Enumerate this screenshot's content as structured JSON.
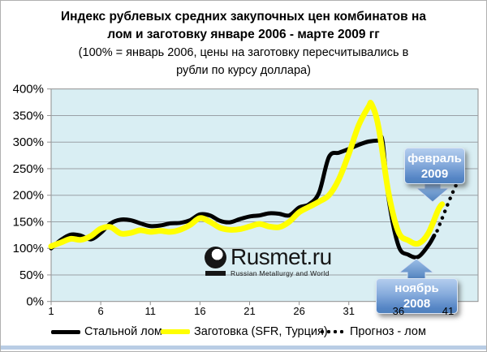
{
  "title": {
    "line1": "Индекс рублевых средних закупочных цен  комбинатов на",
    "line2": "лом и заготовку январе 2006 - марте 2009 гг",
    "line3": "(100% = январь 2006, цены на заготовку пересчитывались в",
    "line4": "рубли по курсу доллара)"
  },
  "watermark": {
    "name": "Rusmet.ru",
    "tagline": "Russian Metallurgy and World"
  },
  "callout_feb": {
    "line1": "февраль",
    "line2": "2009"
  },
  "callout_nov": {
    "line1": "ноябрь",
    "line2": "2008"
  },
  "legend": {
    "items": [
      {
        "label": "Стальной лом",
        "style": "solid-black"
      },
      {
        "label": "Заготовка (SFR, Турция)",
        "style": "solid-yellow"
      },
      {
        "label": "Прогноз - лом",
        "style": "dotted-black"
      }
    ]
  },
  "colors": {
    "plot_bg": "#d9eef3",
    "grid": "#9aa0a6",
    "axis": "#8f8f8f",
    "series_black": "#000000",
    "series_yellow": "#ffff00",
    "callout_top": "#b3cdee",
    "callout_bottom": "#4f81bd",
    "bottom_strip": "#b9cde5",
    "page_border": "#b0b0b0"
  },
  "chart_data": {
    "type": "line",
    "title": "Индекс рублевых средних закупочных цен комбинатов на лом и заготовку январе 2006 - марте 2009 гг",
    "subtitle": "(100% = январь 2006, цены на заготовку пересчитывались в рубли по курсу доллара)",
    "xlabel": "",
    "ylabel": "",
    "x_ticks": [
      1,
      6,
      11,
      16,
      21,
      26,
      31,
      36,
      41
    ],
    "y_ticks": [
      0,
      50,
      100,
      150,
      200,
      250,
      300,
      350,
      400
    ],
    "y_tick_suffix": "%",
    "ylim": [
      0,
      400
    ],
    "xlim": [
      1,
      44
    ],
    "grid": true,
    "legend_position": "bottom",
    "annotations": [
      {
        "text": "февраль 2009",
        "points_to_x": 40,
        "points_to_value": 200
      },
      {
        "text": "ноябрь 2008",
        "points_to_x": 38,
        "points_to_value": 84
      }
    ],
    "series": [
      {
        "name": "Стальной лом",
        "color": "#000000",
        "style": "solid",
        "width": 5,
        "x": [
          1,
          2,
          3,
          4,
          5,
          6,
          7,
          8,
          9,
          10,
          11,
          12,
          13,
          14,
          15,
          16,
          17,
          18,
          19,
          20,
          21,
          22,
          23,
          24,
          25,
          26,
          27,
          28,
          29,
          30,
          31,
          32,
          33,
          34,
          34.4,
          35,
          36,
          37,
          38,
          39,
          39.6
        ],
        "values": [
          100,
          116,
          126,
          124,
          117,
          129,
          147,
          154,
          153,
          147,
          142,
          143,
          147,
          148,
          153,
          164,
          162,
          152,
          149,
          155,
          160,
          162,
          166,
          165,
          162,
          177,
          183,
          205,
          272,
          280,
          287,
          295,
          301,
          303,
          302,
          195,
          105,
          88,
          84,
          105,
          124
        ]
      },
      {
        "name": "Заготовка (SFR, Турция)",
        "color": "#ffff00",
        "style": "solid",
        "width": 7,
        "x": [
          1,
          2,
          3,
          4,
          5,
          6,
          7,
          8,
          9,
          10,
          11,
          12,
          13,
          14,
          15,
          16,
          17,
          18,
          19,
          20,
          21,
          22,
          23,
          24,
          25,
          26,
          27,
          28,
          29,
          30,
          31,
          32,
          33,
          33.3,
          34,
          35,
          36,
          37,
          38,
          39,
          40,
          40.4
        ],
        "values": [
          104,
          111,
          118,
          116,
          123,
          137,
          140,
          128,
          129,
          134,
          131,
          133,
          131,
          135,
          144,
          157,
          150,
          139,
          135,
          136,
          141,
          146,
          141,
          140,
          150,
          168,
          178,
          188,
          200,
          230,
          278,
          332,
          367,
          371,
          328,
          205,
          131,
          115,
          109,
          128,
          172,
          183
        ]
      },
      {
        "name": "Прогноз - лом",
        "color": "#000000",
        "style": "dotted",
        "width": 4.5,
        "x": [
          39.9,
          40.2,
          40.5,
          40.8,
          41.1,
          41.4,
          41.7,
          42.0
        ],
        "values": [
          133,
          147,
          161,
          175,
          189,
          202,
          215,
          226
        ]
      }
    ]
  }
}
